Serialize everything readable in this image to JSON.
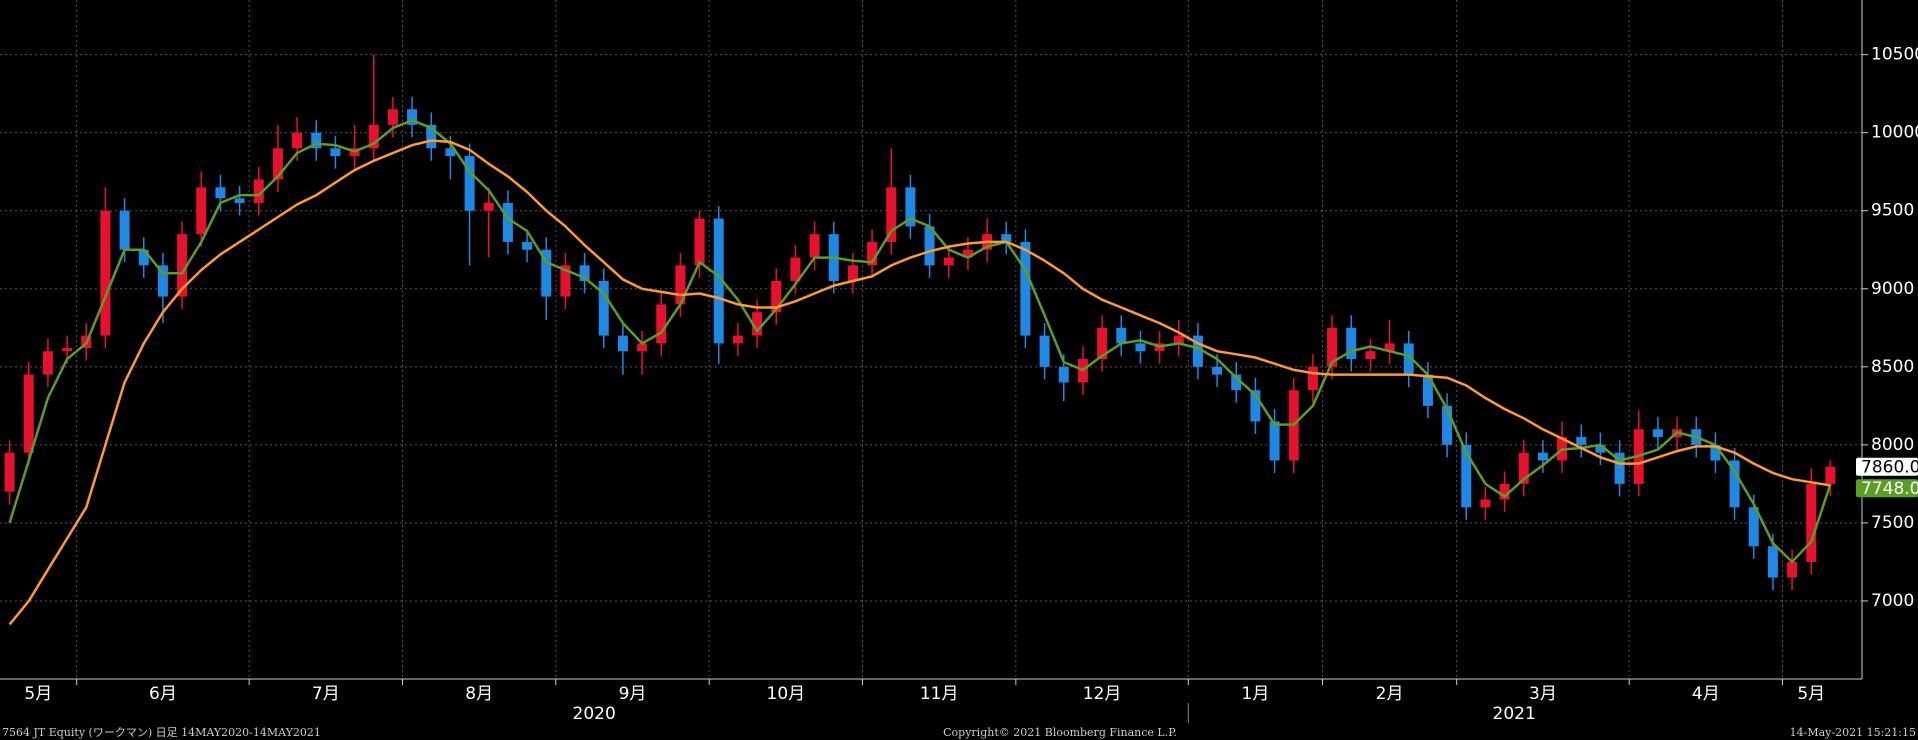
{
  "chart_data": {
    "type": "candlestick",
    "categories": [
      "5月",
      null,
      null,
      null,
      "6月",
      null,
      null,
      null,
      null,
      null,
      null,
      null,
      null,
      "7月",
      null,
      null,
      null,
      null,
      null,
      null,
      null,
      "8月",
      null,
      null,
      null,
      null,
      null,
      null,
      null,
      "9月",
      null,
      null,
      null,
      null,
      null,
      null,
      null,
      "10月",
      null,
      null,
      null,
      null,
      null,
      null,
      null,
      "11月",
      null,
      null,
      null,
      null,
      null,
      null,
      null,
      "12月",
      null,
      null,
      null,
      null,
      null,
      null,
      null,
      null,
      "1月",
      null,
      null,
      null,
      null,
      null,
      null,
      "2月",
      null,
      null,
      null,
      null,
      null,
      null,
      "3月",
      null,
      null,
      null,
      null,
      null,
      null,
      null,
      null,
      "4月",
      null,
      null,
      null,
      null,
      null,
      null,
      null,
      "5月",
      null,
      null
    ],
    "year_categories": [
      "2020",
      null,
      null,
      null,
      null,
      null,
      null,
      null,
      null,
      null,
      null,
      null,
      null,
      null,
      null,
      null,
      null,
      null,
      null,
      null,
      null,
      null,
      null,
      null,
      null,
      null,
      null,
      null,
      null,
      null,
      null,
      null,
      null,
      null,
      null,
      null,
      null,
      null,
      null,
      null,
      null,
      null,
      null,
      null,
      null,
      null,
      null,
      null,
      null,
      null,
      null,
      null,
      null,
      null,
      null,
      null,
      null,
      null,
      null,
      null,
      null,
      null,
      "2021",
      null,
      null,
      null,
      null,
      null,
      null,
      null,
      null,
      null,
      null,
      null,
      null,
      null,
      null,
      null,
      null,
      null,
      null,
      null,
      null,
      null,
      null,
      null,
      null,
      null,
      null,
      null,
      null,
      null,
      null,
      null
    ],
    "ohlc": [
      [
        7700,
        8030,
        7620,
        7950
      ],
      [
        7950,
        8530,
        7870,
        8450
      ],
      [
        8450,
        8680,
        8370,
        8600
      ],
      [
        8600,
        8700,
        8520,
        8620
      ],
      [
        8620,
        8780,
        8540,
        8700
      ],
      [
        8700,
        9650,
        8620,
        9500
      ],
      [
        9500,
        9580,
        9170,
        9250
      ],
      [
        9250,
        9330,
        9070,
        9150
      ],
      [
        9150,
        9230,
        8780,
        8950
      ],
      [
        8950,
        9430,
        8870,
        9350
      ],
      [
        9350,
        9750,
        9270,
        9650
      ],
      [
        9650,
        9730,
        9500,
        9580
      ],
      [
        9580,
        9660,
        9470,
        9550
      ],
      [
        9550,
        9780,
        9470,
        9700
      ],
      [
        9700,
        10050,
        9620,
        9900
      ],
      [
        9900,
        10100,
        9820,
        10000
      ],
      [
        10000,
        10080,
        9820,
        9900
      ],
      [
        9900,
        9980,
        9770,
        9850
      ],
      [
        9850,
        10050,
        9770,
        9900
      ],
      [
        9900,
        10500,
        9820,
        10050
      ],
      [
        10050,
        10230,
        9970,
        10150
      ],
      [
        10150,
        10230,
        9970,
        10050
      ],
      [
        10050,
        10130,
        9820,
        9900
      ],
      [
        9900,
        9980,
        9700,
        9850
      ],
      [
        9850,
        9930,
        9150,
        9500
      ],
      [
        9500,
        9650,
        9200,
        9550
      ],
      [
        9550,
        9630,
        9220,
        9300
      ],
      [
        9300,
        9380,
        9170,
        9250
      ],
      [
        9250,
        9330,
        8800,
        8950
      ],
      [
        8950,
        9230,
        8870,
        9150
      ],
      [
        9150,
        9230,
        8970,
        9050
      ],
      [
        9050,
        9130,
        8620,
        8700
      ],
      [
        8700,
        8780,
        8450,
        8600
      ],
      [
        8600,
        8730,
        8450,
        8650
      ],
      [
        8650,
        8980,
        8570,
        8900
      ],
      [
        8900,
        9230,
        8820,
        9150
      ],
      [
        9150,
        9500,
        9070,
        9450
      ],
      [
        9450,
        9530,
        8520,
        8650
      ],
      [
        8650,
        8780,
        8570,
        8700
      ],
      [
        8700,
        8930,
        8620,
        8850
      ],
      [
        8850,
        9130,
        8770,
        9050
      ],
      [
        9050,
        9280,
        8970,
        9200
      ],
      [
        9200,
        9430,
        9120,
        9350
      ],
      [
        9350,
        9430,
        8970,
        9050
      ],
      [
        9050,
        9230,
        8970,
        9150
      ],
      [
        9150,
        9380,
        9070,
        9300
      ],
      [
        9300,
        9900,
        9220,
        9650
      ],
      [
        9650,
        9730,
        9320,
        9400
      ],
      [
        9400,
        9480,
        9070,
        9150
      ],
      [
        9150,
        9280,
        9070,
        9200
      ],
      [
        9200,
        9330,
        9120,
        9250
      ],
      [
        9250,
        9450,
        9170,
        9350
      ],
      [
        9350,
        9430,
        9220,
        9300
      ],
      [
        9300,
        9380,
        8620,
        8700
      ],
      [
        8700,
        8780,
        8420,
        8500
      ],
      [
        8500,
        8580,
        8280,
        8400
      ],
      [
        8400,
        8630,
        8320,
        8550
      ],
      [
        8550,
        8830,
        8470,
        8750
      ],
      [
        8750,
        8830,
        8570,
        8650
      ],
      [
        8650,
        8730,
        8520,
        8600
      ],
      [
        8600,
        8730,
        8520,
        8650
      ],
      [
        8650,
        8800,
        8570,
        8700
      ],
      [
        8700,
        8780,
        8420,
        8500
      ],
      [
        8500,
        8580,
        8370,
        8450
      ],
      [
        8450,
        8530,
        8270,
        8350
      ],
      [
        8350,
        8430,
        8070,
        8150
      ],
      [
        8150,
        8230,
        7820,
        7900
      ],
      [
        7900,
        8430,
        7820,
        8350
      ],
      [
        8350,
        8580,
        8270,
        8500
      ],
      [
        8500,
        8830,
        8420,
        8750
      ],
      [
        8750,
        8830,
        8470,
        8550
      ],
      [
        8550,
        8680,
        8470,
        8600
      ],
      [
        8600,
        8800,
        8520,
        8650
      ],
      [
        8650,
        8730,
        8370,
        8450
      ],
      [
        8450,
        8530,
        8170,
        8250
      ],
      [
        8250,
        8330,
        7920,
        8000
      ],
      [
        8000,
        8080,
        7520,
        7600
      ],
      [
        7600,
        7730,
        7520,
        7650
      ],
      [
        7650,
        7830,
        7570,
        7750
      ],
      [
        7750,
        8030,
        7670,
        7950
      ],
      [
        7950,
        8030,
        7820,
        7900
      ],
      [
        7900,
        8150,
        7820,
        8050
      ],
      [
        8050,
        8130,
        7920,
        8000
      ],
      [
        8000,
        8080,
        7870,
        7950
      ],
      [
        7950,
        8030,
        7670,
        7750
      ],
      [
        7750,
        8220,
        7670,
        8100
      ],
      [
        8100,
        8180,
        7970,
        8050
      ],
      [
        8050,
        8180,
        7970,
        8100
      ],
      [
        8100,
        8180,
        7920,
        8000
      ],
      [
        8000,
        8080,
        7820,
        7900
      ],
      [
        7900,
        7980,
        7520,
        7600
      ],
      [
        7600,
        7680,
        7270,
        7350
      ],
      [
        7350,
        7430,
        7070,
        7150
      ],
      [
        7150,
        7330,
        7070,
        7250
      ],
      [
        7250,
        7850,
        7170,
        7750
      ],
      [
        7750,
        7900,
        7670,
        7860
      ]
    ],
    "series": [
      {
        "color": "#5a9e23",
        "values": [
          7500,
          7900,
          8300,
          8550,
          8650,
          8950,
          9250,
          9250,
          9100,
          9100,
          9300,
          9550,
          9600,
          9600,
          9720,
          9870,
          9930,
          9920,
          9880,
          9930,
          10030,
          10080,
          10030,
          9930,
          9750,
          9630,
          9450,
          9370,
          9170,
          9120,
          9070,
          8970,
          8780,
          8650,
          8720,
          8900,
          9170,
          9080,
          8930,
          8730,
          8870,
          9030,
          9200,
          9200,
          9180,
          9170,
          9370,
          9450,
          9400,
          9250,
          9200,
          9270,
          9300,
          9120,
          8830,
          8530,
          8480,
          8570,
          8650,
          8670,
          8630,
          8650,
          8620,
          8550,
          8430,
          8320,
          8130,
          8130,
          8250,
          8530,
          8600,
          8630,
          8600,
          8570,
          8450,
          8230,
          7950,
          7750,
          7670,
          7780,
          7870,
          7970,
          7980,
          8000,
          7900,
          7930,
          7970,
          8080,
          8050,
          8000,
          7830,
          7620,
          7370,
          7250,
          7380,
          7748
        ]
      },
      {
        "color": "#ff9a2e",
        "values": [
          6850,
          7000,
          7200,
          7400,
          7600,
          8000,
          8400,
          8650,
          8850,
          9000,
          9120,
          9220,
          9300,
          9380,
          9460,
          9540,
          9600,
          9680,
          9760,
          9820,
          9870,
          9920,
          9950,
          9940,
          9890,
          9800,
          9720,
          9620,
          9500,
          9400,
          9280,
          9170,
          9060,
          9000,
          8980,
          8960,
          8970,
          8940,
          8900,
          8880,
          8880,
          8920,
          8970,
          9020,
          9050,
          9080,
          9150,
          9200,
          9240,
          9270,
          9290,
          9300,
          9300,
          9250,
          9180,
          9100,
          9000,
          8930,
          8880,
          8830,
          8780,
          8720,
          8650,
          8600,
          8580,
          8560,
          8520,
          8480,
          8460,
          8450,
          8450,
          8450,
          8450,
          8450,
          8440,
          8430,
          8380,
          8300,
          8230,
          8170,
          8100,
          8040,
          7980,
          7920,
          7880,
          7880,
          7920,
          7960,
          7990,
          7990,
          7950,
          7880,
          7820,
          7780,
          7760,
          7740
        ]
      }
    ],
    "price_tags": [
      {
        "value": 7860,
        "label": "7860.0",
        "color": "#ffffff"
      },
      {
        "value": 7748,
        "label": "7748.0",
        "color": "#5a9e23"
      }
    ],
    "up_color": "#e8112d",
    "down_color": "#1e88e5",
    "ylim": [
      6500,
      10850
    ],
    "yticks": [
      7000,
      7500,
      8000,
      8500,
      9000,
      9500,
      10000,
      10500
    ],
    "grid": true,
    "footer_left": "7564 JT Equity (ワークマン)  日足 14MAY2020-14MAY2021",
    "footer_center": "Copyright© 2021 Bloomberg Finance L.P.",
    "footer_right": "14-May-2021 15:21:15"
  }
}
